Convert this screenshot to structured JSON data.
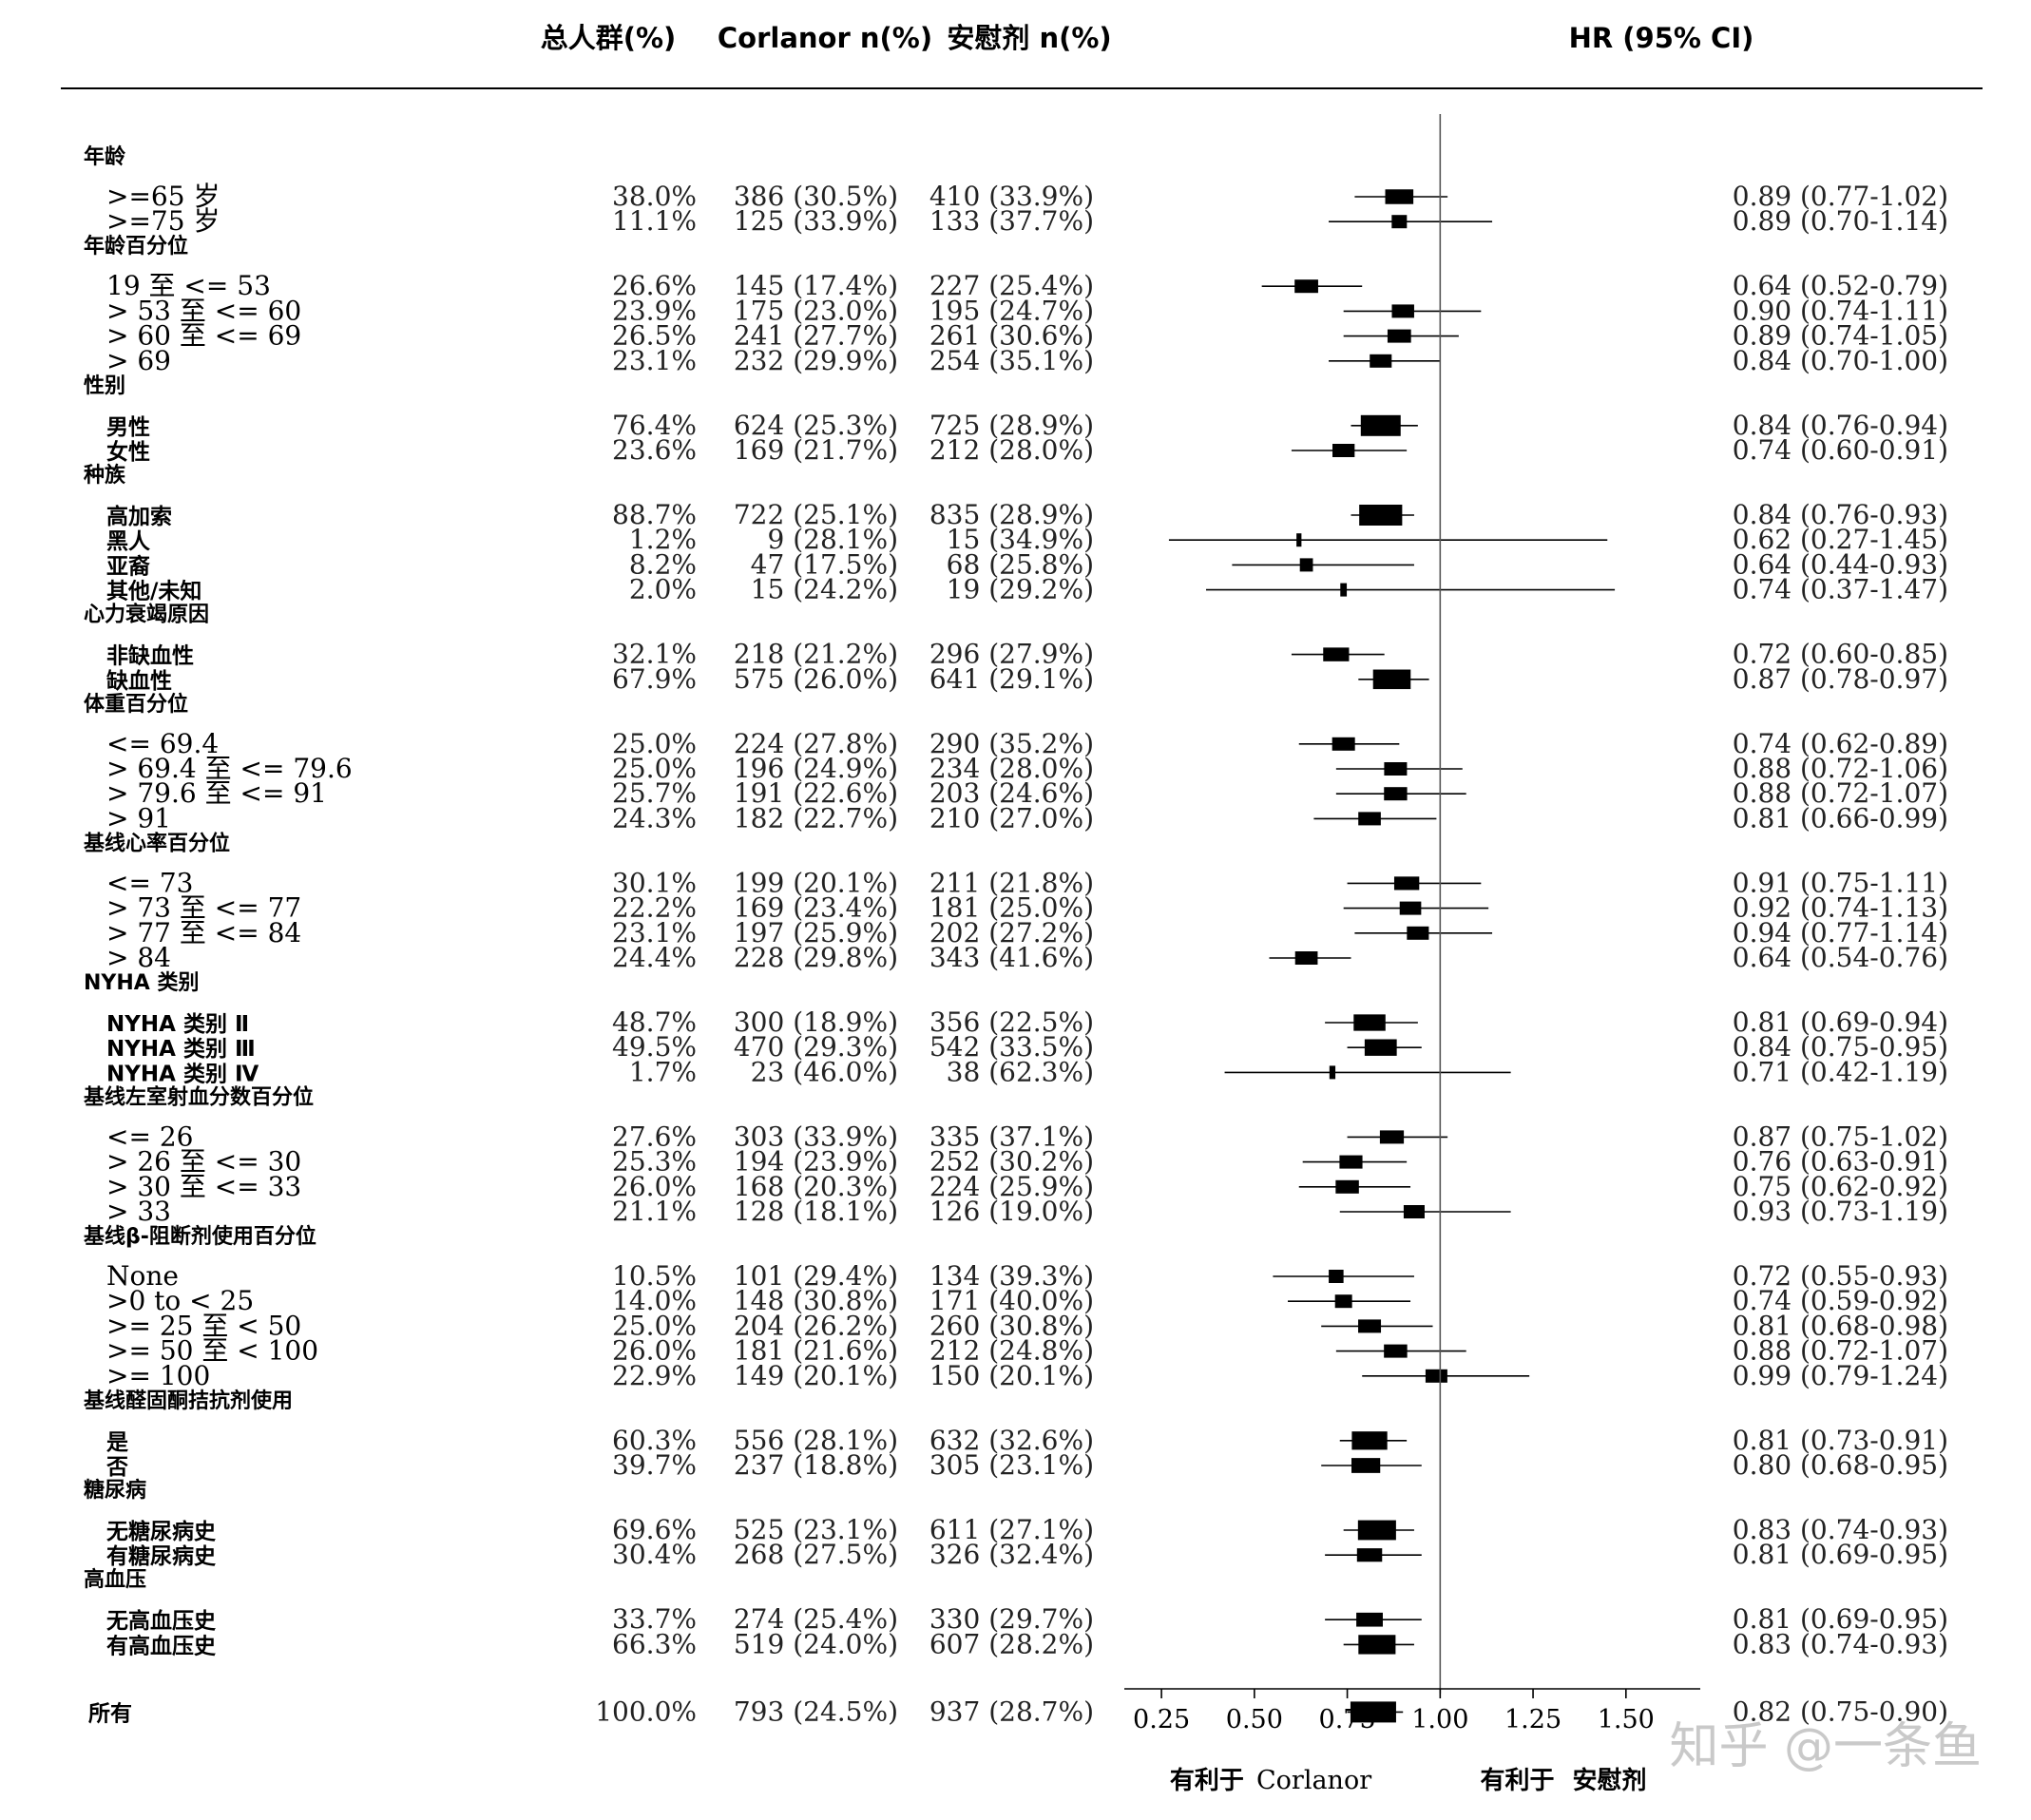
{
  "chart_data": {
    "type": "forest",
    "columns": {
      "overall": "总人群(%)",
      "corlanor": "Corlanor n(%)",
      "placebo": "安慰剂  n(%)",
      "hr": "HR (95% CI)"
    },
    "xlim": [
      0.15,
      1.7
    ],
    "ticks": [
      0.25,
      0.5,
      0.75,
      1.0,
      1.25,
      1.5
    ],
    "tick_labels": [
      "0.25",
      "0.50",
      "0.75",
      "1.00",
      "1.25",
      "1.50"
    ],
    "reference": 1.0,
    "favors_left": {
      "prefix": "有利于",
      "name": "Corlanor"
    },
    "favors_right": {
      "prefix": "有利于",
      "name": "安慰剂"
    },
    "groups": [
      {
        "title": "年龄",
        "rows": [
          {
            "label": ">=65 岁",
            "overall": "38.0%",
            "corlanor": "386 (30.5%)",
            "placebo": "410 (33.9%)",
            "hr_text": "0.89 (0.77-1.02)",
            "hr": 0.89,
            "lo": 0.77,
            "hi": 1.02,
            "weight": 38.0
          },
          {
            "label": ">=75 岁",
            "overall": "11.1%",
            "corlanor": "125 (33.9%)",
            "placebo": "133 (37.7%)",
            "hr_text": "0.89 (0.70-1.14)",
            "hr": 0.89,
            "lo": 0.7,
            "hi": 1.14,
            "weight": 11.1
          }
        ]
      },
      {
        "title": "年龄百分位",
        "rows": [
          {
            "label": "19 至 <= 53",
            "overall": "26.6%",
            "corlanor": "145 (17.4%)",
            "placebo": "227 (25.4%)",
            "hr_text": "0.64 (0.52-0.79)",
            "hr": 0.64,
            "lo": 0.52,
            "hi": 0.79,
            "weight": 26.6
          },
          {
            "label": "> 53 至 <= 60",
            "overall": "23.9%",
            "corlanor": "175 (23.0%)",
            "placebo": "195 (24.7%)",
            "hr_text": "0.90 (0.74-1.11)",
            "hr": 0.9,
            "lo": 0.74,
            "hi": 1.11,
            "weight": 23.9
          },
          {
            "label": "> 60 至 <= 69",
            "overall": "26.5%",
            "corlanor": "241 (27.7%)",
            "placebo": "261 (30.6%)",
            "hr_text": "0.89 (0.74-1.05)",
            "hr": 0.89,
            "lo": 0.74,
            "hi": 1.05,
            "weight": 26.5
          },
          {
            "label": "> 69",
            "overall": "23.1%",
            "corlanor": "232 (29.9%)",
            "placebo": "254 (35.1%)",
            "hr_text": "0.84 (0.70-1.00)",
            "hr": 0.84,
            "lo": 0.7,
            "hi": 1.0,
            "weight": 23.1
          }
        ]
      },
      {
        "title": "性别",
        "rows": [
          {
            "label": "男性",
            "overall": "76.4%",
            "corlanor": "624 (25.3%)",
            "placebo": "725 (28.9%)",
            "hr_text": "0.84 (0.76-0.94)",
            "hr": 0.84,
            "lo": 0.76,
            "hi": 0.94,
            "weight": 76.4
          },
          {
            "label": "女性",
            "overall": "23.6%",
            "corlanor": "169 (21.7%)",
            "placebo": "212 (28.0%)",
            "hr_text": "0.74 (0.60-0.91)",
            "hr": 0.74,
            "lo": 0.6,
            "hi": 0.91,
            "weight": 23.6
          }
        ]
      },
      {
        "title": "种族",
        "rows": [
          {
            "label": "高加索",
            "overall": "88.7%",
            "corlanor": "722 (25.1%)",
            "placebo": "835 (28.9%)",
            "hr_text": "0.84 (0.76-0.93)",
            "hr": 0.84,
            "lo": 0.76,
            "hi": 0.93,
            "weight": 88.7
          },
          {
            "label": "黑人",
            "overall": "1.2%",
            "corlanor": "9 (28.1%)",
            "placebo": "15 (34.9%)",
            "hr_text": "0.62 (0.27-1.45)",
            "hr": 0.62,
            "lo": 0.27,
            "hi": 1.45,
            "weight": 1.2
          },
          {
            "label": "亚裔",
            "overall": "8.2%",
            "corlanor": "47 (17.5%)",
            "placebo": "68 (25.8%)",
            "hr_text": "0.64 (0.44-0.93)",
            "hr": 0.64,
            "lo": 0.44,
            "hi": 0.93,
            "weight": 8.2
          },
          {
            "label": "其他/未知",
            "overall": "2.0%",
            "corlanor": "15 (24.2%)",
            "placebo": "19 (29.2%)",
            "hr_text": "0.74 (0.37-1.47)",
            "hr": 0.74,
            "lo": 0.37,
            "hi": 1.47,
            "weight": 2.0
          }
        ]
      },
      {
        "title": "心力衰竭原因",
        "rows": [
          {
            "label": "非缺血性",
            "overall": "32.1%",
            "corlanor": "218 (21.2%)",
            "placebo": "296 (27.9%)",
            "hr_text": "0.72 (0.60-0.85)",
            "hr": 0.72,
            "lo": 0.6,
            "hi": 0.85,
            "weight": 32.1
          },
          {
            "label": "缺血性",
            "overall": "67.9%",
            "corlanor": "575 (26.0%)",
            "placebo": "641 (29.1%)",
            "hr_text": "0.87 (0.78-0.97)",
            "hr": 0.87,
            "lo": 0.78,
            "hi": 0.97,
            "weight": 67.9
          }
        ]
      },
      {
        "title": "体重百分位",
        "rows": [
          {
            "label": "<= 69.4",
            "overall": "25.0%",
            "corlanor": "224 (27.8%)",
            "placebo": "290 (35.2%)",
            "hr_text": "0.74 (0.62-0.89)",
            "hr": 0.74,
            "lo": 0.62,
            "hi": 0.89,
            "weight": 25.0
          },
          {
            "label": "> 69.4 至 <= 79.6",
            "overall": "25.0%",
            "corlanor": "196 (24.9%)",
            "placebo": "234 (28.0%)",
            "hr_text": "0.88 (0.72-1.06)",
            "hr": 0.88,
            "lo": 0.72,
            "hi": 1.06,
            "weight": 25.0
          },
          {
            "label": "> 79.6 至 <= 91",
            "overall": "25.7%",
            "corlanor": "191 (22.6%)",
            "placebo": "203 (24.6%)",
            "hr_text": "0.88 (0.72-1.07)",
            "hr": 0.88,
            "lo": 0.72,
            "hi": 1.07,
            "weight": 25.7
          },
          {
            "label": "> 91",
            "overall": "24.3%",
            "corlanor": "182 (22.7%)",
            "placebo": "210 (27.0%)",
            "hr_text": "0.81 (0.66-0.99)",
            "hr": 0.81,
            "lo": 0.66,
            "hi": 0.99,
            "weight": 24.3
          }
        ]
      },
      {
        "title": "基线心率百分位",
        "rows": [
          {
            "label": "<= 73",
            "overall": "30.1%",
            "corlanor": "199 (20.1%)",
            "placebo": "211 (21.8%)",
            "hr_text": "0.91 (0.75-1.11)",
            "hr": 0.91,
            "lo": 0.75,
            "hi": 1.11,
            "weight": 30.1
          },
          {
            "label": "> 73 至 <= 77",
            "overall": "22.2%",
            "corlanor": "169 (23.4%)",
            "placebo": "181 (25.0%)",
            "hr_text": "0.92 (0.74-1.13)",
            "hr": 0.92,
            "lo": 0.74,
            "hi": 1.13,
            "weight": 22.2
          },
          {
            "label": "> 77 至 <= 84",
            "overall": "23.1%",
            "corlanor": "197 (25.9%)",
            "placebo": "202 (27.2%)",
            "hr_text": "0.94 (0.77-1.14)",
            "hr": 0.94,
            "lo": 0.77,
            "hi": 1.14,
            "weight": 23.1
          },
          {
            "label": "> 84",
            "overall": "24.4%",
            "corlanor": "228 (29.8%)",
            "placebo": "343 (41.6%)",
            "hr_text": "0.64 (0.54-0.76)",
            "hr": 0.64,
            "lo": 0.54,
            "hi": 0.76,
            "weight": 24.4
          }
        ]
      },
      {
        "title": "NYHA 类别",
        "rows": [
          {
            "label": "NYHA 类别 Ⅱ",
            "overall": "48.7%",
            "corlanor": "300 (18.9%)",
            "placebo": "356 (22.5%)",
            "hr_text": "0.81 (0.69-0.94)",
            "hr": 0.81,
            "lo": 0.69,
            "hi": 0.94,
            "weight": 48.7
          },
          {
            "label": "NYHA 类别 Ⅲ",
            "overall": "49.5%",
            "corlanor": "470 (29.3%)",
            "placebo": "542 (33.5%)",
            "hr_text": "0.84 (0.75-0.95)",
            "hr": 0.84,
            "lo": 0.75,
            "hi": 0.95,
            "weight": 49.5
          },
          {
            "label": "NYHA 类别 Ⅳ",
            "overall": "1.7%",
            "corlanor": "23 (46.0%)",
            "placebo": "38 (62.3%)",
            "hr_text": "0.71 (0.42-1.19)",
            "hr": 0.71,
            "lo": 0.42,
            "hi": 1.19,
            "weight": 1.7
          }
        ]
      },
      {
        "title": "基线左室射血分数百分位",
        "rows": [
          {
            "label": "<= 26",
            "overall": "27.6%",
            "corlanor": "303 (33.9%)",
            "placebo": "335 (37.1%)",
            "hr_text": "0.87 (0.75-1.02)",
            "hr": 0.87,
            "lo": 0.75,
            "hi": 1.02,
            "weight": 27.6
          },
          {
            "label": "> 26 至 <= 30",
            "overall": "25.3%",
            "corlanor": "194 (23.9%)",
            "placebo": "252 (30.2%)",
            "hr_text": "0.76 (0.63-0.91)",
            "hr": 0.76,
            "lo": 0.63,
            "hi": 0.91,
            "weight": 25.3
          },
          {
            "label": "> 30 至 <= 33",
            "overall": "26.0%",
            "corlanor": "168 (20.3%)",
            "placebo": "224 (25.9%)",
            "hr_text": "0.75 (0.62-0.92)",
            "hr": 0.75,
            "lo": 0.62,
            "hi": 0.92,
            "weight": 26.0
          },
          {
            "label": "> 33",
            "overall": "21.1%",
            "corlanor": "128 (18.1%)",
            "placebo": "126 (19.0%)",
            "hr_text": "0.93 (0.73-1.19)",
            "hr": 0.93,
            "lo": 0.73,
            "hi": 1.19,
            "weight": 21.1
          }
        ]
      },
      {
        "title": "基线β-阻断剂使用百分位",
        "rows": [
          {
            "label": "None",
            "overall": "10.5%",
            "corlanor": "101 (29.4%)",
            "placebo": "134 (39.3%)",
            "hr_text": "0.72 (0.55-0.93)",
            "hr": 0.72,
            "lo": 0.55,
            "hi": 0.93,
            "weight": 10.5
          },
          {
            "label": ">0 to < 25",
            "overall": "14.0%",
            "corlanor": "148 (30.8%)",
            "placebo": "171 (40.0%)",
            "hr_text": "0.74 (0.59-0.92)",
            "hr": 0.74,
            "lo": 0.59,
            "hi": 0.92,
            "weight": 14.0
          },
          {
            "label": ">= 25 至 < 50",
            "overall": "25.0%",
            "corlanor": "204 (26.2%)",
            "placebo": "260 (30.8%)",
            "hr_text": "0.81 (0.68-0.98)",
            "hr": 0.81,
            "lo": 0.68,
            "hi": 0.98,
            "weight": 25.0
          },
          {
            "label": ">= 50 至 < 100",
            "overall": "26.0%",
            "corlanor": "181 (21.6%)",
            "placebo": "212 (24.8%)",
            "hr_text": "0.88 (0.72-1.07)",
            "hr": 0.88,
            "lo": 0.72,
            "hi": 1.07,
            "weight": 26.0
          },
          {
            "label": ">= 100",
            "overall": "22.9%",
            "corlanor": "149 (20.1%)",
            "placebo": "150 (20.1%)",
            "hr_text": "0.99 (0.79-1.24)",
            "hr": 0.99,
            "lo": 0.79,
            "hi": 1.24,
            "weight": 22.9
          }
        ]
      },
      {
        "title": "基线醛固酮拮抗剂使用",
        "rows": [
          {
            "label": "是",
            "overall": "60.3%",
            "corlanor": "556 (28.1%)",
            "placebo": "632 (32.6%)",
            "hr_text": "0.81 (0.73-0.91)",
            "hr": 0.81,
            "lo": 0.73,
            "hi": 0.91,
            "weight": 60.3
          },
          {
            "label": "否",
            "overall": "39.7%",
            "corlanor": "237 (18.8%)",
            "placebo": "305 (23.1%)",
            "hr_text": "0.80 (0.68-0.95)",
            "hr": 0.8,
            "lo": 0.68,
            "hi": 0.95,
            "weight": 39.7
          }
        ]
      },
      {
        "title": "糖尿病",
        "rows": [
          {
            "label": "无糖尿病史",
            "overall": "69.6%",
            "corlanor": "525 (23.1%)",
            "placebo": "611 (27.1%)",
            "hr_text": "0.83 (0.74-0.93)",
            "hr": 0.83,
            "lo": 0.74,
            "hi": 0.93,
            "weight": 69.6
          },
          {
            "label": "有糖尿病史",
            "overall": "30.4%",
            "corlanor": "268 (27.5%)",
            "placebo": "326 (32.4%)",
            "hr_text": "0.81 (0.69-0.95)",
            "hr": 0.81,
            "lo": 0.69,
            "hi": 0.95,
            "weight": 30.4
          }
        ]
      },
      {
        "title": "高血压",
        "rows": [
          {
            "label": "无高血压史",
            "overall": "33.7%",
            "corlanor": "274 (25.4%)",
            "placebo": "330 (29.7%)",
            "hr_text": "0.81 (0.69-0.95)",
            "hr": 0.81,
            "lo": 0.69,
            "hi": 0.95,
            "weight": 33.7
          },
          {
            "label": "有高血压史",
            "overall": "66.3%",
            "corlanor": "519 (24.0%)",
            "placebo": "607 (28.2%)",
            "hr_text": "0.83 (0.74-0.93)",
            "hr": 0.83,
            "lo": 0.74,
            "hi": 0.93,
            "weight": 66.3
          }
        ]
      }
    ],
    "overall_row": {
      "label": "所有",
      "overall": "100.0%",
      "corlanor": "793 (24.5%)",
      "placebo": "937 (28.7%)",
      "hr_text": "0.82 (0.75-0.90)",
      "hr": 0.82,
      "lo": 0.75,
      "hi": 0.9,
      "weight": 100.0
    }
  },
  "watermark": "知乎 @一条鱼",
  "colors": {
    "ink": "#000000",
    "ref_line": "#555555",
    "watermark": "#c9c9c9"
  }
}
